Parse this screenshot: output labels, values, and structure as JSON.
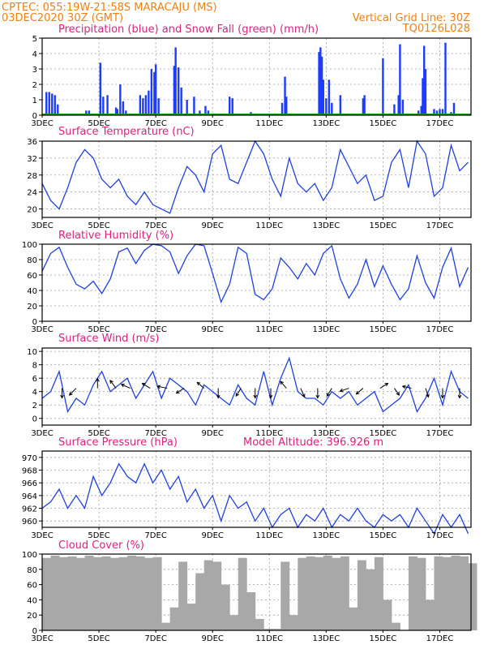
{
  "header": {
    "line1": "CPTEC:   055:19W-21:58S   MARACAJU (MS)",
    "line2_left": "03DEC2020 30Z (GMT)",
    "line2_right": "Vertical Grid Line: 30Z",
    "line3_right": "TQ0126L028"
  },
  "colors": {
    "header": "#f08010",
    "title": "#e0207e",
    "series_line": "#2040e0",
    "precip": "#1e3cff",
    "snow": "#1a9a1a",
    "cloud": "#a8a8a8",
    "wind_arrow": "#000000"
  },
  "x_ticks": [
    "3DEC",
    "5DEC",
    "7DEC",
    "9DEC",
    "11DEC",
    "13DEC",
    "15DEC",
    "17DEC"
  ],
  "chart_data": [
    {
      "id": "precip",
      "type": "bar",
      "title": "Precipitation (blue) and Snow Fall (green) (mm/h)",
      "ylim": [
        0,
        5
      ],
      "yticks": [
        0,
        1,
        2,
        3,
        4,
        5
      ],
      "grid": true,
      "x_range_days": [
        3.0,
        18.1
      ],
      "x": [
        3.15,
        3.25,
        3.35,
        3.45,
        3.55,
        4.55,
        4.65,
        5.05,
        5.15,
        5.3,
        5.6,
        5.65,
        5.75,
        5.85,
        5.95,
        6.45,
        6.55,
        6.65,
        6.75,
        6.85,
        6.95,
        7.0,
        7.1,
        7.65,
        7.7,
        7.8,
        7.9,
        8.1,
        8.35,
        8.55,
        8.75,
        8.85,
        9.6,
        9.7,
        10.35,
        11.45,
        11.55,
        11.6,
        12.75,
        12.8,
        12.85,
        12.9,
        13.0,
        13.1,
        13.2,
        13.5,
        14.3,
        14.35,
        15.0,
        15.4,
        15.55,
        15.6,
        15.7,
        16.25,
        16.35,
        16.4,
        16.45,
        16.5,
        16.8,
        16.9,
        17.0,
        17.1,
        17.2,
        17.4,
        17.5
      ],
      "values": [
        1.5,
        1.5,
        1.4,
        1.3,
        0.7,
        0.3,
        0.3,
        3.4,
        1.2,
        1.3,
        0.5,
        0.4,
        2.0,
        0.9,
        0.3,
        1.3,
        1.1,
        1.3,
        1.6,
        3.0,
        2.8,
        3.3,
        1.1,
        3.2,
        4.4,
        3.1,
        1.8,
        1.0,
        1.2,
        0.3,
        0.6,
        0.3,
        1.2,
        1.1,
        0.2,
        0.8,
        2.5,
        1.2,
        4.1,
        4.4,
        3.8,
        2.3,
        1.1,
        2.3,
        0.8,
        1.3,
        1.1,
        1.3,
        3.7,
        0.7,
        1.3,
        4.6,
        1.0,
        0.3,
        0.6,
        2.4,
        4.5,
        3.0,
        0.4,
        0.3,
        0.4,
        0.4,
        4.7,
        0.2,
        0.8
      ],
      "snow_values": "0 (flat green line)"
    },
    {
      "id": "temperature",
      "type": "line",
      "title": "Surface Temperature (nC)",
      "ylim": [
        18,
        36
      ],
      "yticks": [
        20,
        24,
        28,
        32,
        36
      ],
      "grid": true,
      "x": [
        3.0,
        3.3,
        3.6,
        3.9,
        4.2,
        4.5,
        4.8,
        5.1,
        5.4,
        5.7,
        6.0,
        6.3,
        6.6,
        6.9,
        7.2,
        7.5,
        7.8,
        8.1,
        8.4,
        8.7,
        9.0,
        9.3,
        9.6,
        9.9,
        10.2,
        10.5,
        10.8,
        11.1,
        11.4,
        11.7,
        12.0,
        12.3,
        12.6,
        12.9,
        13.2,
        13.5,
        13.8,
        14.1,
        14.4,
        14.7,
        15.0,
        15.3,
        15.6,
        15.9,
        16.2,
        16.5,
        16.8,
        17.1,
        17.4,
        17.7,
        18.0
      ],
      "values": [
        26,
        22,
        20,
        25,
        31,
        34,
        32,
        27,
        25,
        27,
        23,
        21,
        24,
        21,
        20,
        19,
        25,
        30,
        28,
        24,
        33,
        35,
        27,
        26,
        31,
        36,
        33,
        27,
        23,
        32,
        26,
        24,
        26,
        22,
        25,
        34,
        30,
        26,
        28,
        22,
        23,
        31,
        34,
        25,
        36,
        33,
        23,
        25,
        35,
        29,
        31
      ]
    },
    {
      "id": "humidity",
      "type": "line",
      "title": "Relative Humidity (%)",
      "ylim": [
        0,
        100
      ],
      "yticks": [
        0,
        20,
        40,
        60,
        80,
        100
      ],
      "grid": true,
      "x": [
        3.0,
        3.3,
        3.6,
        3.9,
        4.2,
        4.5,
        4.8,
        5.1,
        5.4,
        5.7,
        6.0,
        6.3,
        6.6,
        6.9,
        7.2,
        7.5,
        7.8,
        8.1,
        8.4,
        8.7,
        9.0,
        9.3,
        9.6,
        9.9,
        10.2,
        10.5,
        10.8,
        11.1,
        11.4,
        11.7,
        12.0,
        12.3,
        12.6,
        12.9,
        13.2,
        13.5,
        13.8,
        14.1,
        14.4,
        14.7,
        15.0,
        15.3,
        15.6,
        15.9,
        16.2,
        16.5,
        16.8,
        17.1,
        17.4,
        17.7,
        18.0
      ],
      "values": [
        65,
        88,
        96,
        70,
        48,
        42,
        52,
        36,
        55,
        90,
        95,
        75,
        92,
        100,
        98,
        90,
        62,
        85,
        100,
        98,
        62,
        25,
        48,
        96,
        88,
        35,
        28,
        42,
        82,
        70,
        55,
        75,
        60,
        88,
        98,
        55,
        30,
        48,
        80,
        45,
        72,
        48,
        28,
        42,
        85,
        50,
        30,
        70,
        95,
        45,
        70
      ]
    },
    {
      "id": "wind",
      "type": "line",
      "title": "Surface Wind (m/s)",
      "ylim": [
        -1,
        10.5
      ],
      "yticks": [
        0,
        2,
        4,
        6,
        8,
        10
      ],
      "grid": true,
      "x": [
        3.0,
        3.3,
        3.6,
        3.9,
        4.2,
        4.5,
        4.8,
        5.1,
        5.4,
        5.7,
        6.0,
        6.3,
        6.6,
        6.9,
        7.2,
        7.5,
        7.8,
        8.1,
        8.4,
        8.7,
        9.0,
        9.3,
        9.6,
        9.9,
        10.2,
        10.5,
        10.8,
        11.1,
        11.4,
        11.7,
        12.0,
        12.3,
        12.6,
        12.9,
        13.2,
        13.5,
        13.8,
        14.1,
        14.4,
        14.7,
        15.0,
        15.3,
        15.6,
        15.9,
        16.2,
        16.5,
        16.8,
        17.1,
        17.4,
        17.7,
        18.0
      ],
      "values": [
        3,
        4,
        7,
        1,
        3,
        2,
        5,
        7,
        4,
        5,
        6,
        3,
        5,
        7,
        3,
        6,
        5,
        4,
        2,
        5,
        4,
        3,
        2,
        5,
        3,
        2,
        7,
        2,
        6,
        9,
        4,
        3,
        3,
        2,
        4,
        3,
        4,
        2,
        3,
        4,
        1,
        2,
        3,
        5,
        1,
        3,
        6,
        2,
        7,
        4,
        3
      ],
      "arrows": [
        {
          "x": 3.7,
          "dx": 0,
          "dy": -1
        },
        {
          "x": 4.2,
          "dx": -0.7,
          "dy": -0.7
        },
        {
          "x": 4.95,
          "dx": 0,
          "dy": 1
        },
        {
          "x": 5.6,
          "dx": -0.6,
          "dy": 0.8
        },
        {
          "x": 6.1,
          "dx": -0.9,
          "dy": 0.4
        },
        {
          "x": 6.8,
          "dx": -0.8,
          "dy": 0.5
        },
        {
          "x": 7.4,
          "dx": -1,
          "dy": 0.2
        },
        {
          "x": 8.0,
          "dx": -0.8,
          "dy": -0.5
        },
        {
          "x": 8.7,
          "dx": -0.7,
          "dy": 0.6
        },
        {
          "x": 9.2,
          "dx": 0,
          "dy": -1
        },
        {
          "x": 10.0,
          "dx": -0.5,
          "dy": -0.8
        },
        {
          "x": 10.5,
          "dx": 0,
          "dy": -1
        },
        {
          "x": 11.05,
          "dx": 0,
          "dy": -1
        },
        {
          "x": 11.6,
          "dx": -0.6,
          "dy": 0.7
        },
        {
          "x": 12.1,
          "dx": 0.4,
          "dy": -0.9
        },
        {
          "x": 12.7,
          "dx": 0,
          "dy": -1
        },
        {
          "x": 13.2,
          "dx": -0.5,
          "dy": -0.8
        },
        {
          "x": 13.8,
          "dx": -0.9,
          "dy": -0.3
        },
        {
          "x": 14.3,
          "dx": -0.7,
          "dy": -0.6
        },
        {
          "x": 14.9,
          "dx": 0.8,
          "dy": 0.5
        },
        {
          "x": 15.4,
          "dx": 0.5,
          "dy": -0.7
        },
        {
          "x": 16.0,
          "dx": -0.9,
          "dy": 0.2
        },
        {
          "x": 16.5,
          "dx": 0.3,
          "dy": -0.9
        },
        {
          "x": 17.1,
          "dx": 0,
          "dy": -1
        },
        {
          "x": 17.7,
          "dx": 0,
          "dy": -1
        }
      ]
    },
    {
      "id": "pressure",
      "type": "line",
      "title": "Surface Pressure (hPa)",
      "subtitle": "Model Altitude: 396.926 m",
      "ylim": [
        959,
        971
      ],
      "yticks": [
        960,
        962,
        964,
        966,
        968,
        970
      ],
      "grid": true,
      "x": [
        3.0,
        3.3,
        3.6,
        3.9,
        4.2,
        4.5,
        4.8,
        5.1,
        5.4,
        5.7,
        6.0,
        6.3,
        6.6,
        6.9,
        7.2,
        7.5,
        7.8,
        8.1,
        8.4,
        8.7,
        9.0,
        9.3,
        9.6,
        9.9,
        10.2,
        10.5,
        10.8,
        11.1,
        11.4,
        11.7,
        12.0,
        12.3,
        12.6,
        12.9,
        13.2,
        13.5,
        13.8,
        14.1,
        14.4,
        14.7,
        15.0,
        15.3,
        15.6,
        15.9,
        16.2,
        16.5,
        16.8,
        17.1,
        17.4,
        17.7,
        18.0
      ],
      "values": [
        962,
        963,
        965,
        962,
        964,
        962,
        967,
        964,
        966,
        969,
        967,
        966,
        969,
        966,
        968,
        965,
        967,
        963,
        965,
        962,
        964,
        960,
        964,
        962,
        963,
        960,
        962,
        959,
        961,
        962,
        959,
        961,
        960,
        962,
        959,
        961,
        960,
        962,
        960,
        959,
        961,
        960,
        961,
        959,
        962,
        960,
        958,
        961,
        959,
        961,
        958
      ]
    },
    {
      "id": "cloud",
      "type": "area",
      "title": "Cloud Cover (%)",
      "ylim": [
        0,
        100
      ],
      "yticks": [
        0,
        20,
        40,
        60,
        80,
        100
      ],
      "grid": true,
      "x": [
        3.0,
        3.3,
        3.6,
        3.9,
        4.2,
        4.5,
        4.8,
        5.1,
        5.4,
        5.7,
        6.0,
        6.3,
        6.6,
        6.9,
        7.2,
        7.5,
        7.8,
        8.1,
        8.4,
        8.7,
        9.0,
        9.3,
        9.6,
        9.9,
        10.2,
        10.5,
        10.8,
        11.1,
        11.4,
        11.7,
        12.0,
        12.3,
        12.6,
        12.9,
        13.2,
        13.5,
        13.8,
        14.1,
        14.4,
        14.7,
        15.0,
        15.3,
        15.6,
        15.9,
        16.2,
        16.5,
        16.8,
        17.1,
        17.4,
        17.7,
        18.0
      ],
      "values": [
        95,
        98,
        96,
        97,
        95,
        98,
        96,
        97,
        95,
        96,
        98,
        97,
        95,
        96,
        10,
        30,
        90,
        35,
        75,
        92,
        90,
        60,
        20,
        95,
        50,
        15,
        2,
        2,
        90,
        20,
        95,
        97,
        96,
        98,
        95,
        97,
        30,
        92,
        80,
        96,
        40,
        10,
        0,
        97,
        95,
        40,
        97,
        96,
        98,
        97,
        88
      ]
    }
  ]
}
